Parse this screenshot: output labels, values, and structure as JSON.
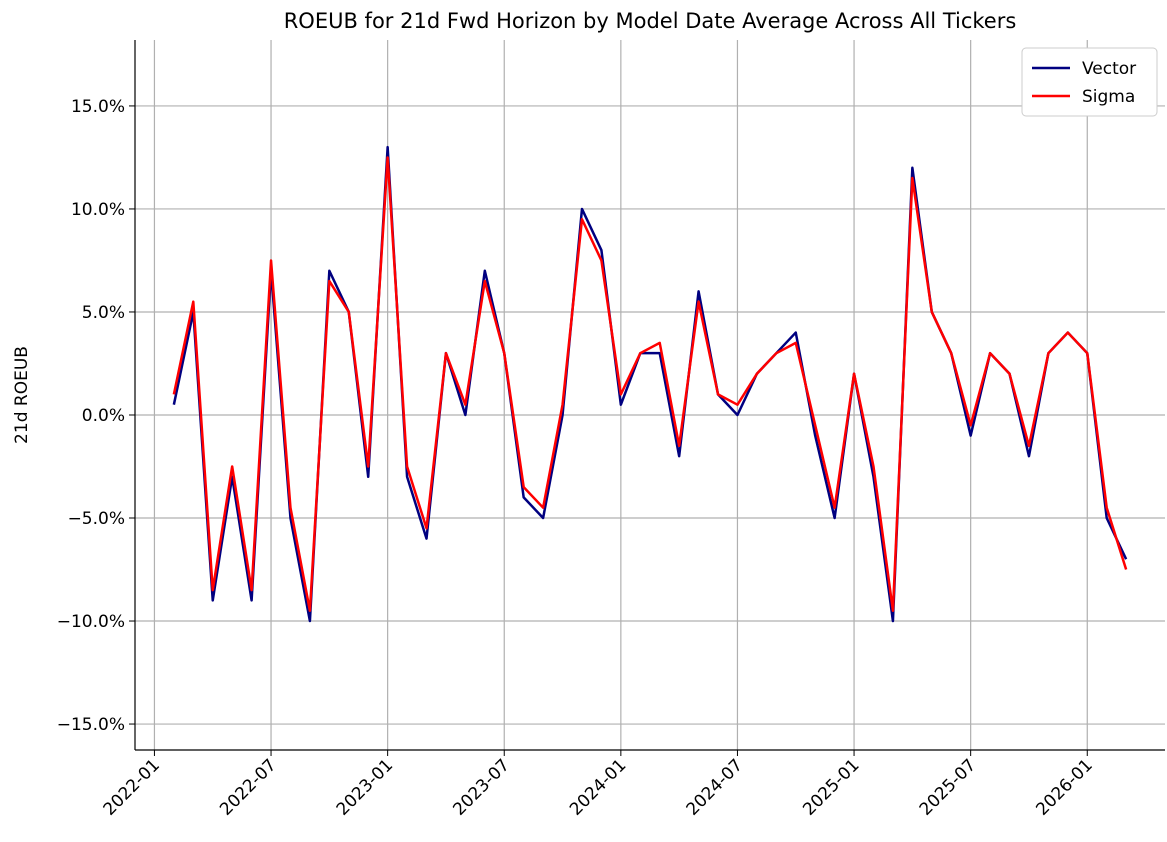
{
  "chart_data": {
    "type": "line",
    "title": "ROEUB for 21d Fwd Horizon by Model Date Average Across All Tickers",
    "ylabel": "21d ROEUB",
    "x": [
      "2022-02",
      "2022-03",
      "2022-04",
      "2022-05",
      "2022-06",
      "2022-07",
      "2022-08",
      "2022-09",
      "2022-10",
      "2022-11",
      "2022-12",
      "2023-01",
      "2023-02",
      "2023-03",
      "2023-04",
      "2023-05",
      "2023-06",
      "2023-07",
      "2023-08",
      "2023-09",
      "2023-10",
      "2023-11",
      "2023-12",
      "2024-01",
      "2024-02",
      "2024-03",
      "2024-04",
      "2024-05",
      "2024-06",
      "2024-07",
      "2024-08",
      "2024-09",
      "2024-10",
      "2024-11",
      "2024-12",
      "2025-01",
      "2025-02",
      "2025-03",
      "2025-04",
      "2025-05",
      "2025-06",
      "2025-07",
      "2025-08",
      "2025-09",
      "2025-10",
      "2025-11",
      "2025-12",
      "2026-01",
      "2026-02",
      "2026-03"
    ],
    "series": [
      {
        "name": "Vector",
        "color": "#000080",
        "values": [
          0.5,
          5,
          -9,
          -3,
          -9,
          7,
          -5,
          -10,
          7,
          5,
          -3,
          13,
          -3,
          -6,
          3,
          0,
          7,
          3,
          -4,
          -5,
          0,
          10,
          8,
          0.5,
          3,
          3,
          -2,
          6,
          1,
          0,
          2,
          3,
          4,
          -1,
          -5,
          2,
          -3,
          -10,
          12,
          5,
          3,
          -1,
          3,
          2,
          -2,
          3,
          4,
          3,
          -5,
          -7
        ]
      },
      {
        "name": "Sigma",
        "color": "#ff0000",
        "values": [
          1,
          5.5,
          -8.5,
          -2.5,
          -8.5,
          7.5,
          -4.5,
          -9.5,
          6.5,
          5,
          -2.5,
          12.5,
          -2.5,
          -5.5,
          3,
          0.5,
          6.5,
          3,
          -3.5,
          -4.5,
          0.5,
          9.5,
          7.5,
          1,
          3,
          3.5,
          -1.5,
          5.5,
          1,
          0.5,
          2,
          3,
          3.5,
          -0.5,
          -4.5,
          2,
          -2.5,
          -9.5,
          11.5,
          5,
          3,
          -0.5,
          3,
          2,
          -1.5,
          3,
          4,
          3,
          -4.5,
          -7.5
        ]
      }
    ],
    "xlim": [
      "2021-12",
      "2026-05"
    ],
    "xticks": [
      "2022-01",
      "2022-07",
      "2023-01",
      "2023-07",
      "2024-01",
      "2024-07",
      "2025-01",
      "2025-07",
      "2026-01"
    ],
    "ylim": [
      -16.26,
      18.2
    ],
    "yticks": [
      {
        "value": -15,
        "label": "−15.0%"
      },
      {
        "value": -10,
        "label": "−10.0%"
      },
      {
        "value": -5,
        "label": "−5.0%"
      },
      {
        "value": 0,
        "label": "0.0%"
      },
      {
        "value": 5,
        "label": "5.0%"
      },
      {
        "value": 10,
        "label": "10.0%"
      },
      {
        "value": 15,
        "label": "15.0%"
      }
    ],
    "grid": true,
    "legend": "upper right"
  }
}
